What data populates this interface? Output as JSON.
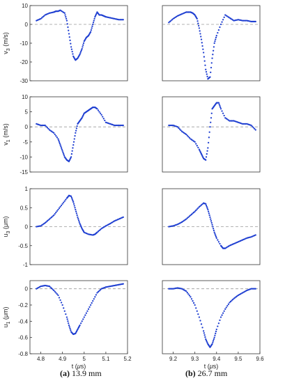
{
  "captions": {
    "a_label": "(a)",
    "a_text": " 13.9 mm",
    "b_label": "(b)",
    "b_text": " 26.7 mm"
  },
  "colors": {
    "series": "#1f3fd1",
    "zero_line": "#9a9a9a",
    "axis": "#333333"
  },
  "chart_data": [
    {
      "type": "scatter",
      "panel": "v3-a",
      "ylabel": "v3 (m/s)",
      "ylabel_main": "v",
      "ylabel_sub": "3",
      "ylabel_rest": " (m/s)",
      "xlim": [
        4.75,
        5.2
      ],
      "ylim": [
        -30,
        10
      ],
      "xticks": [],
      "yticks": [
        10,
        0,
        -10,
        -20,
        -30
      ],
      "reference_line": 0,
      "grid": false,
      "x": [
        4.78,
        4.8,
        4.82,
        4.84,
        4.86,
        4.87,
        4.88,
        4.89,
        4.91,
        4.92,
        4.93,
        4.94,
        4.95,
        4.96,
        4.97,
        4.98,
        4.99,
        5.0,
        5.01,
        5.02,
        5.03,
        5.04,
        5.05,
        5.06,
        5.07,
        5.08,
        5.09,
        5.1,
        5.12,
        5.14,
        5.16,
        5.18
      ],
      "y": [
        2,
        3,
        5,
        6,
        6.5,
        7,
        7,
        7.5,
        6,
        2,
        -5,
        -12,
        -17,
        -19,
        -18,
        -16,
        -13,
        -9,
        -7,
        -6,
        -4,
        0,
        4,
        6.5,
        5,
        5,
        4.5,
        4,
        3.5,
        3,
        2.5,
        2.5
      ]
    },
    {
      "type": "scatter",
      "panel": "v3-b",
      "ylabel": "",
      "xlim": [
        9.15,
        9.6
      ],
      "ylim": [
        -30,
        10
      ],
      "xticks": [],
      "yticks": [],
      "reference_line": 0,
      "grid": false,
      "x": [
        9.18,
        9.2,
        9.22,
        9.24,
        9.26,
        9.28,
        9.29,
        9.3,
        9.31,
        9.32,
        9.33,
        9.34,
        9.35,
        9.36,
        9.37,
        9.38,
        9.39,
        9.4,
        9.42,
        9.44,
        9.46,
        9.48,
        9.5,
        9.52,
        9.54,
        9.56,
        9.58
      ],
      "y": [
        1,
        3,
        4.5,
        5.5,
        6.5,
        6.5,
        6,
        5,
        3,
        -2,
        -8,
        -15,
        -24,
        -29,
        -28,
        -18,
        -10,
        -6,
        0,
        5,
        3.5,
        2,
        2.5,
        2,
        2,
        1.5,
        1.5
      ]
    },
    {
      "type": "scatter",
      "panel": "v1-a",
      "ylabel": "v1 (m/s)",
      "ylabel_main": "v",
      "ylabel_sub": "1",
      "ylabel_rest": " (m/s)",
      "xlim": [
        4.75,
        5.2
      ],
      "ylim": [
        -15,
        10
      ],
      "xticks": [],
      "yticks": [
        10,
        5,
        0,
        -5,
        -10,
        -15
      ],
      "reference_line": 0,
      "grid": false,
      "x": [
        4.78,
        4.8,
        4.82,
        4.84,
        4.86,
        4.88,
        4.89,
        4.9,
        4.91,
        4.92,
        4.93,
        4.94,
        4.95,
        4.96,
        4.97,
        4.98,
        4.99,
        5.0,
        5.01,
        5.02,
        5.03,
        5.04,
        5.05,
        5.06,
        5.08,
        5.1,
        5.12,
        5.14,
        5.16,
        5.18
      ],
      "y": [
        1,
        0.5,
        0.5,
        -1,
        -2,
        -4,
        -6,
        -8,
        -10,
        -11,
        -11.5,
        -10,
        -6,
        -2,
        1,
        2,
        3,
        4.5,
        5,
        5.5,
        6,
        6.5,
        6.5,
        6,
        4,
        1.5,
        1,
        0.5,
        0.5,
        0.5
      ]
    },
    {
      "type": "scatter",
      "panel": "v1-b",
      "ylabel": "",
      "xlim": [
        9.15,
        9.6
      ],
      "ylim": [
        -15,
        10
      ],
      "xticks": [],
      "yticks": [],
      "reference_line": 0,
      "grid": false,
      "x": [
        9.18,
        9.2,
        9.22,
        9.24,
        9.26,
        9.28,
        9.3,
        9.32,
        9.33,
        9.34,
        9.35,
        9.36,
        9.37,
        9.38,
        9.39,
        9.4,
        9.41,
        9.42,
        9.44,
        9.46,
        9.48,
        9.5,
        9.52,
        9.54,
        9.56,
        9.58
      ],
      "y": [
        0.5,
        0.5,
        0,
        -1.5,
        -2.5,
        -4,
        -5,
        -7.5,
        -9,
        -10.5,
        -11,
        -7,
        0,
        6,
        7,
        8,
        8,
        6,
        3,
        2,
        2,
        1.5,
        1,
        1,
        0.5,
        -1
      ]
    },
    {
      "type": "scatter",
      "panel": "u3-a",
      "ylabel": "u3 (μm)",
      "ylabel_main": "u",
      "ylabel_sub": "3",
      "ylabel_rest": " (μm)",
      "xlim": [
        4.75,
        5.2
      ],
      "ylim": [
        -1,
        1
      ],
      "xticks": [],
      "yticks": [
        1,
        0.5,
        0,
        -0.5,
        -1
      ],
      "reference_line": 0,
      "grid": false,
      "x": [
        4.78,
        4.8,
        4.82,
        4.84,
        4.86,
        4.88,
        4.9,
        4.92,
        4.93,
        4.94,
        4.95,
        4.96,
        4.97,
        4.98,
        4.99,
        5.0,
        5.02,
        5.04,
        5.05,
        5.06,
        5.08,
        5.1,
        5.12,
        5.14,
        5.16,
        5.18
      ],
      "y": [
        0.0,
        0.02,
        0.1,
        0.2,
        0.3,
        0.45,
        0.6,
        0.75,
        0.82,
        0.8,
        0.65,
        0.45,
        0.25,
        0.08,
        -0.05,
        -0.15,
        -0.2,
        -0.22,
        -0.2,
        -0.15,
        -0.05,
        0.02,
        0.08,
        0.15,
        0.2,
        0.25
      ]
    },
    {
      "type": "scatter",
      "panel": "u3-b",
      "ylabel": "",
      "xlim": [
        9.15,
        9.6
      ],
      "ylim": [
        -1,
        1
      ],
      "xticks": [],
      "yticks": [],
      "reference_line": 0,
      "grid": false,
      "x": [
        9.18,
        9.2,
        9.22,
        9.24,
        9.26,
        9.28,
        9.3,
        9.32,
        9.34,
        9.35,
        9.36,
        9.37,
        9.38,
        9.39,
        9.4,
        9.42,
        9.43,
        9.44,
        9.46,
        9.48,
        9.5,
        9.52,
        9.54,
        9.56,
        9.58
      ],
      "y": [
        0.0,
        0.02,
        0.06,
        0.12,
        0.2,
        0.3,
        0.4,
        0.52,
        0.62,
        0.6,
        0.45,
        0.25,
        0.05,
        -0.15,
        -0.3,
        -0.5,
        -0.57,
        -0.57,
        -0.5,
        -0.45,
        -0.4,
        -0.35,
        -0.3,
        -0.27,
        -0.22
      ]
    },
    {
      "type": "scatter",
      "panel": "u1-a",
      "ylabel": "u1 (μm)",
      "ylabel_main": "u",
      "ylabel_sub": "1",
      "ylabel_rest": " (μm)",
      "xlim": [
        4.75,
        5.2
      ],
      "ylim": [
        -0.8,
        0.1
      ],
      "xticks": [
        4.8,
        4.9,
        5,
        5.1,
        5.2
      ],
      "xtick_labels": [
        "4.8",
        "4.9",
        "5",
        "5.1",
        "5.2"
      ],
      "yticks": [
        0,
        -0.2,
        -0.4,
        -0.6,
        -0.8
      ],
      "ytick_labels": [
        "0",
        "-0.2",
        "-0.4",
        "-0.6",
        "-0.8"
      ],
      "xlabel": "t (μs)",
      "xlabel_main": "t (",
      "xlabel_unit": "μ",
      "xlabel_rest": "s)",
      "reference_line": 0,
      "grid": false,
      "x": [
        4.78,
        4.8,
        4.82,
        4.84,
        4.86,
        4.88,
        4.9,
        4.92,
        4.93,
        4.94,
        4.95,
        4.96,
        4.97,
        4.98,
        5.0,
        5.02,
        5.04,
        5.06,
        5.08,
        5.1,
        5.12,
        5.14,
        5.16,
        5.18
      ],
      "y": [
        0.0,
        0.03,
        0.04,
        0.03,
        -0.02,
        -0.08,
        -0.2,
        -0.35,
        -0.45,
        -0.53,
        -0.56,
        -0.55,
        -0.5,
        -0.45,
        -0.35,
        -0.25,
        -0.15,
        -0.05,
        0.0,
        0.02,
        0.03,
        0.04,
        0.05,
        0.06
      ]
    },
    {
      "type": "scatter",
      "panel": "u1-b",
      "ylabel": "",
      "xlim": [
        9.15,
        9.6
      ],
      "ylim": [
        -0.8,
        0.1
      ],
      "xticks": [
        9.2,
        9.3,
        9.4,
        9.5,
        9.6
      ],
      "xtick_labels": [
        "9.2",
        "9.3",
        "9.4",
        "9.5",
        "9.6"
      ],
      "yticks": [],
      "xlabel": "t (μs)",
      "xlabel_main": "t (",
      "xlabel_unit": "μ",
      "xlabel_rest": "s)",
      "reference_line": 0,
      "grid": false,
      "x": [
        9.18,
        9.2,
        9.22,
        9.24,
        9.26,
        9.28,
        9.3,
        9.32,
        9.34,
        9.35,
        9.36,
        9.37,
        9.38,
        9.39,
        9.4,
        9.42,
        9.44,
        9.46,
        9.48,
        9.5,
        9.52,
        9.54,
        9.56,
        9.58
      ],
      "y": [
        0.0,
        0.0,
        0.01,
        0.0,
        -0.03,
        -0.1,
        -0.2,
        -0.35,
        -0.52,
        -0.62,
        -0.68,
        -0.72,
        -0.68,
        -0.6,
        -0.5,
        -0.35,
        -0.25,
        -0.17,
        -0.12,
        -0.08,
        -0.05,
        -0.02,
        0.0,
        0.0
      ]
    }
  ]
}
